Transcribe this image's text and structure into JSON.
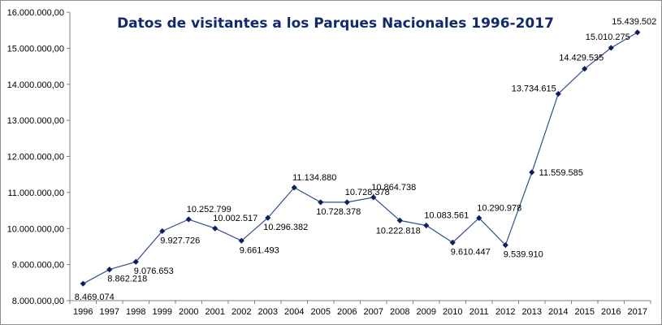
{
  "chart_data": {
    "type": "line",
    "title": "Datos de visitantes a los Parques Nacionales  1996-2017",
    "xlabel": "",
    "ylabel": "",
    "categories": [
      "1996",
      "1997",
      "1998",
      "1999",
      "2000",
      "2001",
      "2002",
      "2003",
      "2004",
      "2005",
      "2006",
      "2007",
      "2008",
      "2009",
      "2010",
      "2011",
      "2012",
      "2013",
      "2014",
      "2015",
      "2016",
      "2017"
    ],
    "series": [
      {
        "values": [
          8469074,
          8862218,
          9076653,
          9927726,
          10252799,
          10002517,
          9661493,
          10296382,
          11134880,
          10728378,
          10728378,
          10864738,
          10222818,
          10083561,
          9610447,
          10290978,
          9539910,
          11559585,
          13734615,
          14429535,
          15010275,
          15439502
        ],
        "labels": [
          "8.469.074",
          "8.862.218",
          "9.076.653",
          "9.927.726",
          "10.252.799",
          "10.002.517",
          "9.661.493",
          "10.296.382",
          "11.134.880",
          "10.728.378",
          "10.728.378",
          "10.864.738",
          "10.222.818",
          "10.083.561",
          "9.610.447",
          "10.290.978",
          "9.539.910",
          "11.559.585",
          "13.734.615",
          "14.429.535",
          "15.010.275",
          "15.439.502"
        ]
      }
    ],
    "ylim": [
      8000000,
      16000000
    ],
    "yticks": [
      8000000,
      9000000,
      10000000,
      11000000,
      12000000,
      13000000,
      14000000,
      15000000,
      16000000
    ],
    "ytick_labels": [
      "8.000.000,00",
      "9.000.000,00",
      "10.000.000,00",
      "11.000.000,00",
      "12.000.000,00",
      "13.000.000,00",
      "14.000.000,00",
      "15.000.000,00",
      "16.000.000,00"
    ],
    "grid": false,
    "legend": "none",
    "colors": {
      "line": "#2f4f8f",
      "marker": "#0d1f5c",
      "title": "#102a6e",
      "axis": "#808080"
    }
  }
}
